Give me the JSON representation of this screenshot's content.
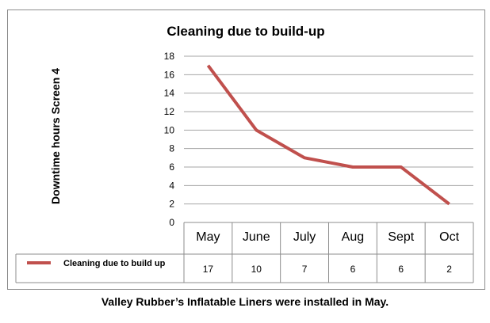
{
  "chart_data": {
    "type": "line",
    "title": "Cleaning due to build-up",
    "ylabel": "Downtime hours Screen 4",
    "xlabel": "",
    "categories": [
      "May",
      "June",
      "July",
      "Aug",
      "Sept",
      "Oct"
    ],
    "ylim": [
      0,
      18
    ],
    "yticks": [
      0,
      2,
      4,
      6,
      8,
      10,
      12,
      14,
      16,
      18
    ],
    "grid": true,
    "series": [
      {
        "name": "Cleaning due to build up",
        "values": [
          17,
          10,
          7,
          6,
          6,
          2
        ],
        "color": "#c0504d"
      }
    ],
    "data_table": true
  },
  "caption": "Valley Rubber’s Inflatable Liners were installed in May."
}
